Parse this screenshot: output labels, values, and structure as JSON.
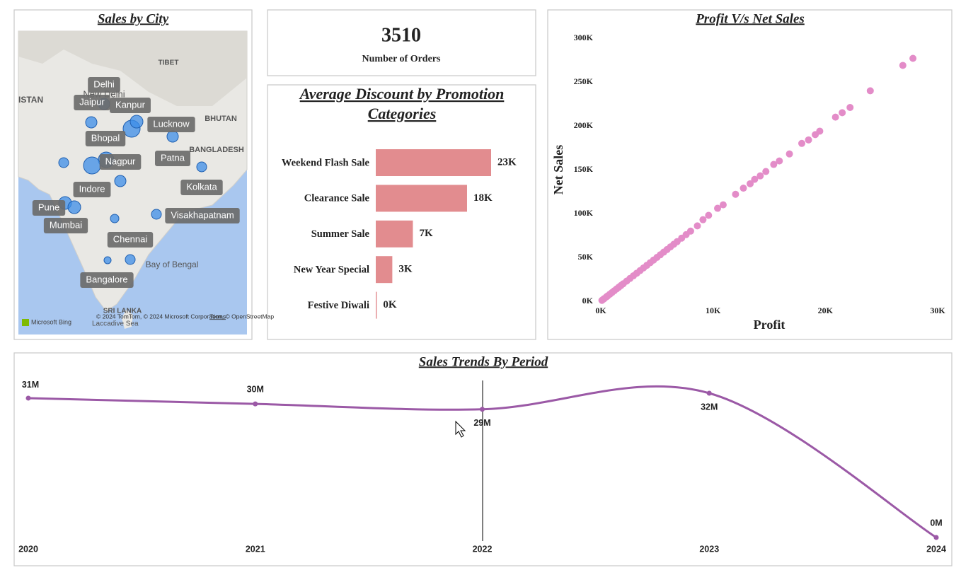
{
  "map": {
    "title": "Sales by City",
    "cities": [
      "Delhi",
      "Jaipur",
      "Kanpur",
      "Lucknow",
      "Bhopal",
      "Nagpur",
      "Patna",
      "Indore",
      "Kolkata",
      "Pune",
      "Mumbai",
      "Visakhapatnam",
      "Chennai",
      "Bangalore"
    ],
    "base_labels": [
      "ISTAN",
      "TIBET",
      "New Delhi",
      "BHUTAN",
      "BANGLADESH",
      "Bay of Bengal",
      "SRI LANKA",
      "Laccadive Sea"
    ],
    "attribution": {
      "brand": "Microsoft Bing",
      "copyright": "© 2024 TomTom, © 2024 Microsoft Corporation, © OpenStreetMap",
      "terms": "Terms"
    }
  },
  "kpi": {
    "value": 3510,
    "label": "Number of Orders"
  },
  "chart_data": [
    {
      "type": "bar",
      "title": "Average Discount by Promotion Categories",
      "categories": [
        "Weekend Flash Sale",
        "Clearance Sale",
        "Summer Sale",
        "New Year Special",
        "Festive Diwali"
      ],
      "values": [
        23,
        18.2,
        7.4,
        3.3,
        0.2
      ],
      "value_labels": [
        "23K",
        "18K",
        "7K",
        "3K",
        "0K"
      ],
      "color": "#e28c8f"
    },
    {
      "type": "scatter",
      "title": "Profit V/s Net Sales",
      "xlabel": "Profit",
      "ylabel": "Net Sales",
      "color": "#e38cc8",
      "grid": false,
      "xlim": [
        0,
        30000
      ],
      "ylim": [
        0,
        300000
      ],
      "xticks": [
        {
          "value": 0,
          "label": "0K"
        },
        {
          "value": 10000,
          "label": "10K"
        },
        {
          "value": 20000,
          "label": "20K"
        },
        {
          "value": 30000,
          "label": "30K"
        }
      ],
      "yticks": [
        {
          "value": 0,
          "label": "0K"
        },
        {
          "value": 50000,
          "label": "50K"
        },
        {
          "value": 100000,
          "label": "100K"
        },
        {
          "value": 150000,
          "label": "150K"
        },
        {
          "value": 200000,
          "label": "200K"
        },
        {
          "value": 250000,
          "label": "250K"
        },
        {
          "value": 300000,
          "label": "300K"
        }
      ],
      "x": [
        100,
        200,
        300,
        500,
        600,
        800,
        1000,
        1200,
        1400,
        1600,
        1800,
        2000,
        2300,
        2600,
        2900,
        3200,
        3500,
        3800,
        4100,
        4400,
        4700,
        5000,
        5300,
        5600,
        5900,
        6200,
        6500,
        6800,
        7200,
        7600,
        8000,
        8600,
        9100,
        9600,
        10400,
        10900,
        12000,
        12700,
        13300,
        13700,
        14200,
        14700,
        15400,
        15900,
        16800,
        17900,
        18500,
        19100,
        19500,
        20900,
        21500,
        22200,
        24000,
        26900,
        27800
      ],
      "values": [
        1000,
        2000,
        3000,
        5000,
        6000,
        8000,
        10000,
        12000,
        14000,
        16000,
        18000,
        20000,
        23000,
        26000,
        29000,
        32000,
        35000,
        38000,
        41000,
        44000,
        47000,
        50000,
        53000,
        56000,
        59000,
        62000,
        65000,
        68000,
        72000,
        76000,
        80000,
        86000,
        93000,
        98000,
        106000,
        110000,
        122000,
        129000,
        134000,
        139000,
        143000,
        148000,
        156000,
        160000,
        168000,
        180000,
        184000,
        190000,
        194000,
        210000,
        215000,
        221000,
        240000,
        269000,
        277000
      ]
    },
    {
      "type": "line",
      "title": "Sales Trends By Period",
      "color": "#9b59a6",
      "categories": [
        "2020",
        "2021",
        "2022",
        "2023",
        "2024"
      ],
      "values": [
        31.2,
        29.9,
        28.7,
        32.3,
        0
      ],
      "value_labels": [
        "31M",
        "30M",
        "29M",
        "32M",
        "0M"
      ]
    }
  ]
}
